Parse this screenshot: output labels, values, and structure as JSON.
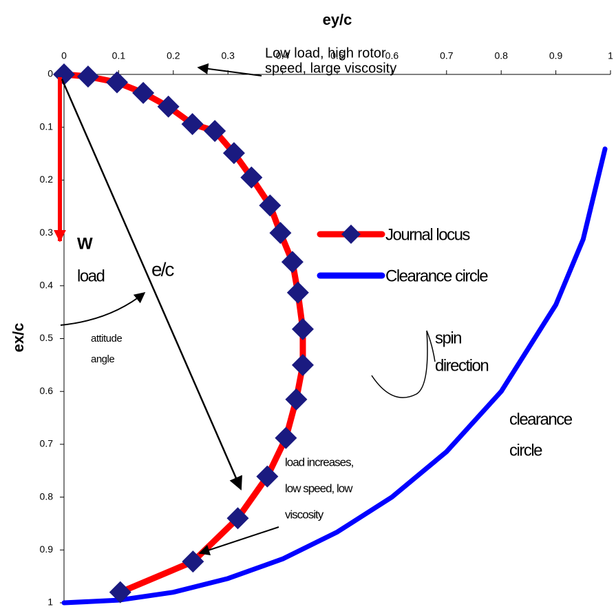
{
  "chart_data": {
    "type": "line",
    "x_label": "ey/c",
    "y_label": "ex/c",
    "xlim": [
      0,
      1
    ],
    "ylim": [
      0,
      1
    ],
    "xticks": [
      0,
      0.1,
      0.2,
      0.3,
      0.4,
      0.5,
      0.6,
      0.7,
      0.8,
      0.9,
      1
    ],
    "yticks": [
      0,
      0.1,
      0.2,
      0.3,
      0.4,
      0.5,
      0.6,
      0.7,
      0.8,
      0.9,
      1
    ],
    "y_inverted": true,
    "x_axis_position": "top",
    "legend": "right",
    "series": [
      {
        "name": "Journal locus",
        "color": "#ff0000",
        "marker_color": "#1a1a80",
        "marker": "diamond",
        "x": [
          0,
          0.044,
          0.097,
          0.145,
          0.191,
          0.235,
          0.276,
          0.311,
          0.343,
          0.377,
          0.396,
          0.418,
          0.428,
          0.437,
          0.437,
          0.425,
          0.406,
          0.372,
          0.318,
          0.236,
          0.103
        ],
        "values": [
          0,
          0.004,
          0.015,
          0.035,
          0.061,
          0.094,
          0.107,
          0.149,
          0.195,
          0.248,
          0.3,
          0.355,
          0.413,
          0.482,
          0.55,
          0.615,
          0.688,
          0.761,
          0.84,
          0.922,
          0.98
        ]
      },
      {
        "name": "Clearance circle",
        "color": "#0000ff",
        "x": [
          0,
          0.1,
          0.2,
          0.3,
          0.4,
          0.5,
          0.6,
          0.7,
          0.8,
          0.9,
          0.95,
          0.99
        ],
        "values": [
          1,
          0.995,
          0.98,
          0.954,
          0.917,
          0.866,
          0.8,
          0.714,
          0.6,
          0.436,
          0.312,
          0.141
        ]
      }
    ],
    "annotations": [
      {
        "lines": [
          "Low load, high rotor",
          "speed, large viscosity"
        ]
      },
      {
        "lines": [
          "W"
        ]
      },
      {
        "lines": [
          "load"
        ]
      },
      {
        "lines": [
          "e/c"
        ]
      },
      {
        "lines": [
          "attitude",
          "angle"
        ]
      },
      {
        "lines": [
          "spin",
          "direction"
        ]
      },
      {
        "lines": [
          "load increases,",
          "low speed, low",
          "viscosity"
        ]
      },
      {
        "lines": [
          "clearance",
          "circle"
        ]
      }
    ]
  }
}
